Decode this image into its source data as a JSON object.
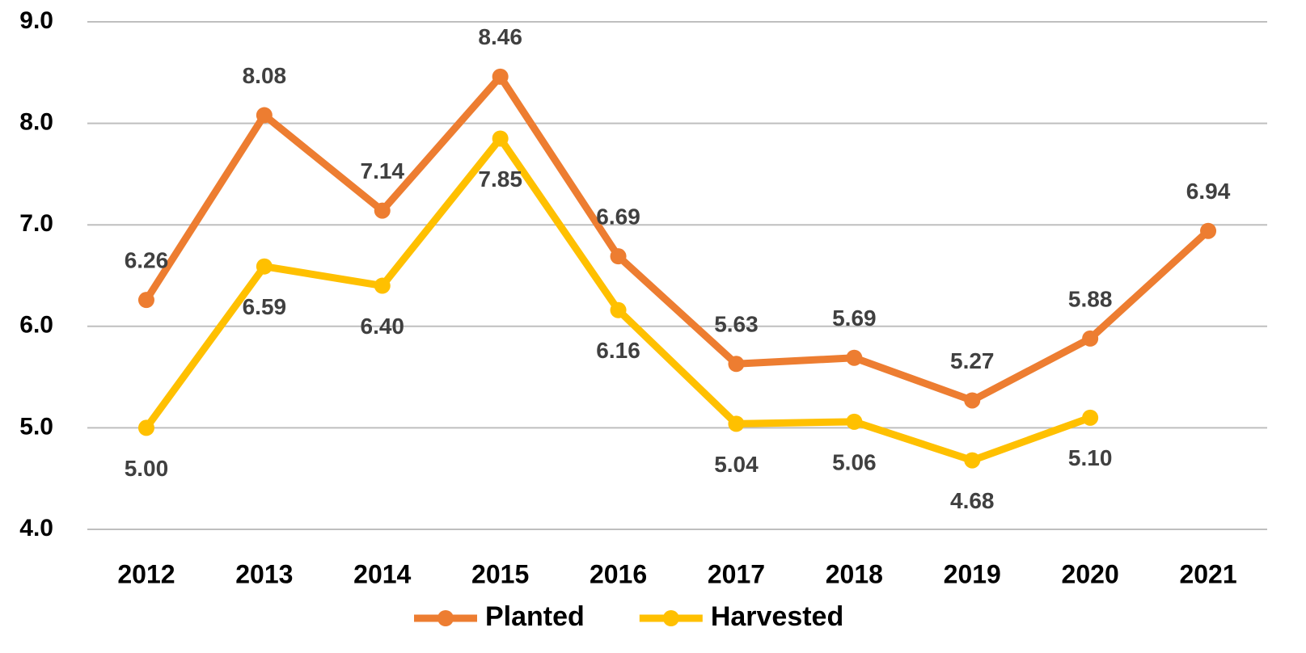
{
  "chart_data": {
    "type": "line",
    "categories": [
      "2012",
      "2013",
      "2014",
      "2015",
      "2016",
      "2017",
      "2018",
      "2019",
      "2020",
      "2021"
    ],
    "series": [
      {
        "name": "Planted",
        "color": "#ED7D31",
        "values": [
          6.26,
          8.08,
          7.14,
          8.46,
          6.69,
          5.63,
          5.69,
          5.27,
          5.88,
          6.94
        ],
        "value_labels": [
          "6.26",
          "8.08",
          "7.14",
          "8.46",
          "6.69",
          "5.63",
          "5.69",
          "5.27",
          "5.88",
          "6.94"
        ]
      },
      {
        "name": "Harvested",
        "color": "#FFC000",
        "values": [
          5,
          6.59,
          6.4,
          7.85,
          6.16,
          5.04,
          5.06,
          4.68,
          5.1,
          null
        ],
        "value_labels": [
          "5.00",
          "6.59",
          "6.40",
          "7.85",
          "6.16",
          "5.04",
          "5.06",
          "4.68",
          "5.10",
          null
        ]
      }
    ],
    "ylim": [
      4,
      9
    ],
    "yticks": [
      {
        "value": 4,
        "label": "4.0"
      },
      {
        "value": 5,
        "label": "5.0"
      },
      {
        "value": 6,
        "label": "6.0"
      },
      {
        "value": 7,
        "label": "7.0"
      },
      {
        "value": 8,
        "label": "8.0"
      },
      {
        "value": 9,
        "label": "9.0"
      }
    ],
    "grid": true,
    "legend": "bottom"
  }
}
